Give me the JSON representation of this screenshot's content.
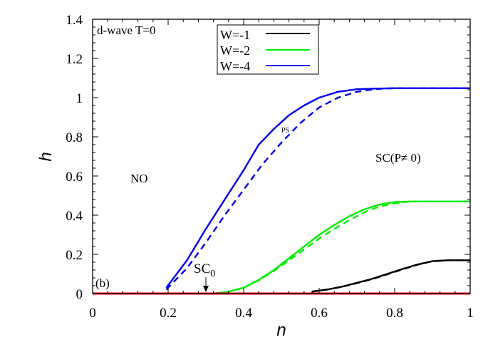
{
  "chart_data": {
    "type": "line",
    "title": "",
    "xlabel": "n",
    "ylabel": "h",
    "xlim": [
      0,
      1
    ],
    "ylim": [
      0,
      1.4
    ],
    "x_ticks": [
      "0",
      "0.2",
      "0.4",
      "0.6",
      "0.8",
      "1"
    ],
    "y_ticks": [
      "0",
      "0.2",
      "0.4",
      "0.6",
      "0.8",
      "1",
      "1.2",
      "1.4"
    ],
    "grid": false,
    "legend_position": "top-center",
    "annotations": {
      "panel_title": "d-wave T=0",
      "panel_label": "(b)",
      "region_no": "NO",
      "region_sc": "SC(P≠ 0)",
      "region_ps": "PS",
      "sc0_label": "SC",
      "sc0_sub": "0",
      "sc0_arrow_n": 0.3
    },
    "series": [
      {
        "name": "W=-1",
        "color": "#000000",
        "style": "solid",
        "x": [
          0.58,
          0.62,
          0.66,
          0.7,
          0.74,
          0.78,
          0.82,
          0.86,
          0.9,
          0.94,
          1.0
        ],
        "y": [
          0.01,
          0.02,
          0.035,
          0.055,
          0.075,
          0.1,
          0.125,
          0.148,
          0.165,
          0.17,
          0.17
        ]
      },
      {
        "name": "W=-1 (dashed)",
        "color": "#000000",
        "style": "dashed",
        "x": [
          0.58,
          0.62,
          0.66,
          0.7,
          0.74,
          0.78,
          0.82,
          0.86,
          0.9,
          0.94,
          1.0
        ],
        "y": [
          0.01,
          0.02,
          0.034,
          0.053,
          0.073,
          0.098,
          0.123,
          0.147,
          0.165,
          0.17,
          0.17
        ]
      },
      {
        "name": "W=-2",
        "color": "#00ee00",
        "style": "solid",
        "x": [
          0.32,
          0.36,
          0.4,
          0.44,
          0.48,
          0.52,
          0.56,
          0.6,
          0.64,
          0.68,
          0.72,
          0.76,
          0.8,
          0.84,
          0.9,
          1.0
        ],
        "y": [
          0.0,
          0.01,
          0.03,
          0.07,
          0.12,
          0.18,
          0.24,
          0.3,
          0.35,
          0.395,
          0.43,
          0.455,
          0.467,
          0.47,
          0.47,
          0.47
        ]
      },
      {
        "name": "W=-2 (dashed)",
        "color": "#00ee00",
        "style": "dashed",
        "x": [
          0.32,
          0.36,
          0.4,
          0.44,
          0.48,
          0.52,
          0.56,
          0.6,
          0.64,
          0.68,
          0.72,
          0.76,
          0.8,
          0.84,
          0.9,
          1.0
        ],
        "y": [
          0.0,
          0.01,
          0.03,
          0.068,
          0.115,
          0.17,
          0.225,
          0.28,
          0.33,
          0.375,
          0.415,
          0.445,
          0.46,
          0.47,
          0.47,
          0.47
        ]
      },
      {
        "name": "W=-4",
        "color": "#0000ee",
        "style": "solid",
        "x": [
          0.195,
          0.25,
          0.3,
          0.35,
          0.4,
          0.44,
          0.48,
          0.52,
          0.56,
          0.6,
          0.65,
          0.7,
          0.75,
          0.8,
          0.9,
          1.0
        ],
        "y": [
          0.03,
          0.17,
          0.33,
          0.48,
          0.63,
          0.76,
          0.84,
          0.91,
          0.96,
          1.0,
          1.03,
          1.043,
          1.046,
          1.048,
          1.048,
          1.048
        ]
      },
      {
        "name": "W=-4 (dashed)",
        "color": "#0000ee",
        "style": "dashed",
        "x": [
          0.195,
          0.25,
          0.3,
          0.35,
          0.4,
          0.45,
          0.5,
          0.55,
          0.6,
          0.65,
          0.7,
          0.75,
          0.8,
          0.9,
          1.0
        ],
        "y": [
          0.02,
          0.13,
          0.26,
          0.4,
          0.53,
          0.66,
          0.77,
          0.87,
          0.95,
          1.0,
          1.03,
          1.044,
          1.048,
          1.048,
          1.048
        ]
      },
      {
        "name": "h=0 baseline",
        "color": "#ff0000",
        "style": "solid",
        "x": [
          0,
          1
        ],
        "y": [
          0,
          0
        ]
      }
    ]
  }
}
